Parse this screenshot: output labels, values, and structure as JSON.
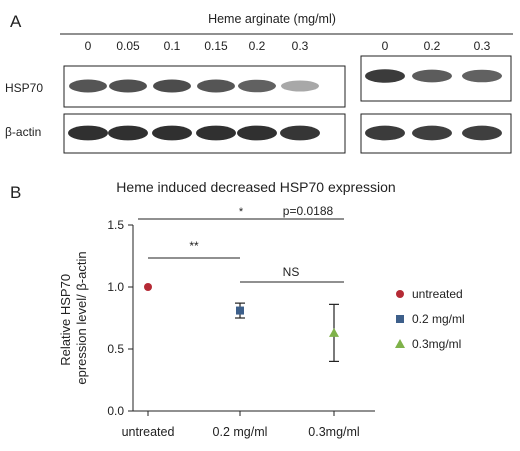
{
  "panel_a": {
    "label": "A",
    "treatment_header": "Heme arginate (mg/ml)",
    "blot_left": {
      "lane_labels": [
        "0",
        "0.05",
        "0.1",
        "0.15",
        "0.2",
        "0.3"
      ],
      "hsp70_intensity": [
        0.78,
        0.8,
        0.82,
        0.78,
        0.72,
        0.4
      ],
      "actin_intensity": [
        0.95,
        0.95,
        0.95,
        0.95,
        0.95,
        0.92
      ]
    },
    "blot_right": {
      "lane_labels": [
        "0",
        "0.2",
        "0.3"
      ],
      "hsp70_intensity": [
        0.9,
        0.75,
        0.72
      ],
      "actin_intensity": [
        0.9,
        0.88,
        0.88
      ]
    },
    "row_labels": [
      "HSP70",
      "β-actin"
    ]
  },
  "panel_b": {
    "label": "B"
  },
  "chart_data": {
    "type": "scatter",
    "title": "Heme induced decreased HSP70 expression",
    "ylabel": "Relative HSP70 epression level/ β-actin",
    "xlabel": "",
    "categories": [
      "untreated",
      "0.2 mg/ml",
      "0.3mg/ml"
    ],
    "ylim": [
      0,
      1.5
    ],
    "yticks": [
      "0.0",
      "0.5",
      "1.0",
      "1.5"
    ],
    "series": [
      {
        "name": "untreated",
        "category": "untreated",
        "value": 1.0,
        "error": 0.0,
        "marker": "circle",
        "color": "#b52a35"
      },
      {
        "name": "0.2 mg/ml",
        "category": "0.2 mg/ml",
        "value": 0.81,
        "error": 0.06,
        "marker": "square",
        "color": "#3d5f8a"
      },
      {
        "name": "0.3mg/ml",
        "category": "0.3mg/ml",
        "value": 0.63,
        "error": 0.23,
        "marker": "triangle",
        "color": "#7fb24a"
      }
    ],
    "significance": [
      {
        "from": "untreated",
        "to": "0.2 mg/ml",
        "label": "**"
      },
      {
        "from": "untreated",
        "to": "0.3mg/ml",
        "label": "*"
      },
      {
        "from": "untreated",
        "to": "0.3mg/ml",
        "label": "p=0.0188"
      },
      {
        "from": "0.2 mg/ml",
        "to": "0.3mg/ml",
        "label": "NS"
      }
    ],
    "legend_position": "right"
  }
}
